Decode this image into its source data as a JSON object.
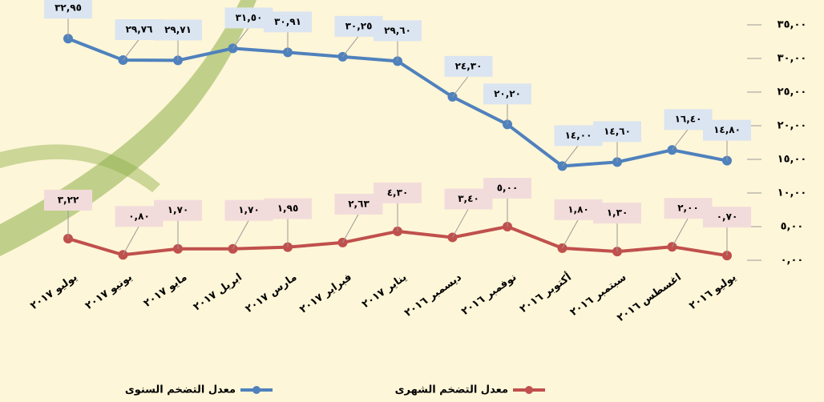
{
  "chart_data": {
    "type": "line",
    "categories": [
      "يوليو ٢٠١٧",
      "يونيو ٢٠١٧",
      "مايو ٢٠١٧",
      "ابريل ٢٠١٧",
      "مارس ٢٠١٧",
      "فبراير ٢٠١٧",
      "يناير ٢٠١٧",
      "ديسمبر ٢٠١٦",
      "نوفمبر ٢٠١٦",
      "أكتوبر ٢٠١٦",
      "سبتمبر ٢٠١٦",
      "اغسطس ٢٠١٦",
      "يوليو ٢٠١٦"
    ],
    "series": [
      {
        "name": "معدل التضخم السنوى",
        "color": "#4f81bd",
        "label_color": "#dbe5f1",
        "values": [
          32.95,
          29.76,
          29.71,
          31.5,
          30.91,
          30.25,
          29.6,
          24.3,
          20.2,
          14.0,
          14.6,
          16.4,
          14.8
        ],
        "value_labels": [
          "٣٢,٩٥",
          "٢٩,٧٦",
          "٢٩,٧١",
          "٣١,٥٠",
          "٣٠,٩١",
          "٣٠,٢٥",
          "٢٩,٦٠",
          "٢٤,٣٠",
          "٢٠,٢٠",
          "١٤,٠٠",
          "١٤,٦٠",
          "١٦,٤٠",
          "١٤,٨٠"
        ]
      },
      {
        "name": "معدل التضخم الشهرى",
        "color": "#c0504d",
        "label_color": "#f2dcdb",
        "values": [
          3.22,
          0.8,
          1.7,
          1.7,
          1.95,
          2.63,
          4.3,
          3.4,
          5.0,
          1.8,
          1.3,
          2.0,
          0.7
        ],
        "value_labels": [
          "٣,٢٢",
          "٠,٨٠",
          "١,٧٠",
          "١,٧٠",
          "١,٩٥",
          "٢,٦٣",
          "٤,٣٠",
          "٣,٤٠",
          "٥,٠٠",
          "١,٨٠",
          "١,٣٠",
          "٢,٠٠",
          "٠,٧٠"
        ]
      }
    ],
    "ylim": [
      0,
      35
    ],
    "yticks": [
      {
        "value": 0,
        "label": "٠,٠٠"
      },
      {
        "value": 5,
        "label": "٥,٠٠"
      },
      {
        "value": 10,
        "label": "١٠,٠٠"
      },
      {
        "value": 15,
        "label": "١٥,٠٠"
      },
      {
        "value": 20,
        "label": "٢٠,٠٠"
      },
      {
        "value": 25,
        "label": "٢٥,٠٠"
      },
      {
        "value": 30,
        "label": "٣٠,٠٠"
      },
      {
        "value": 35,
        "label": "٣٥,٠٠"
      }
    ],
    "legend": "bottom"
  }
}
